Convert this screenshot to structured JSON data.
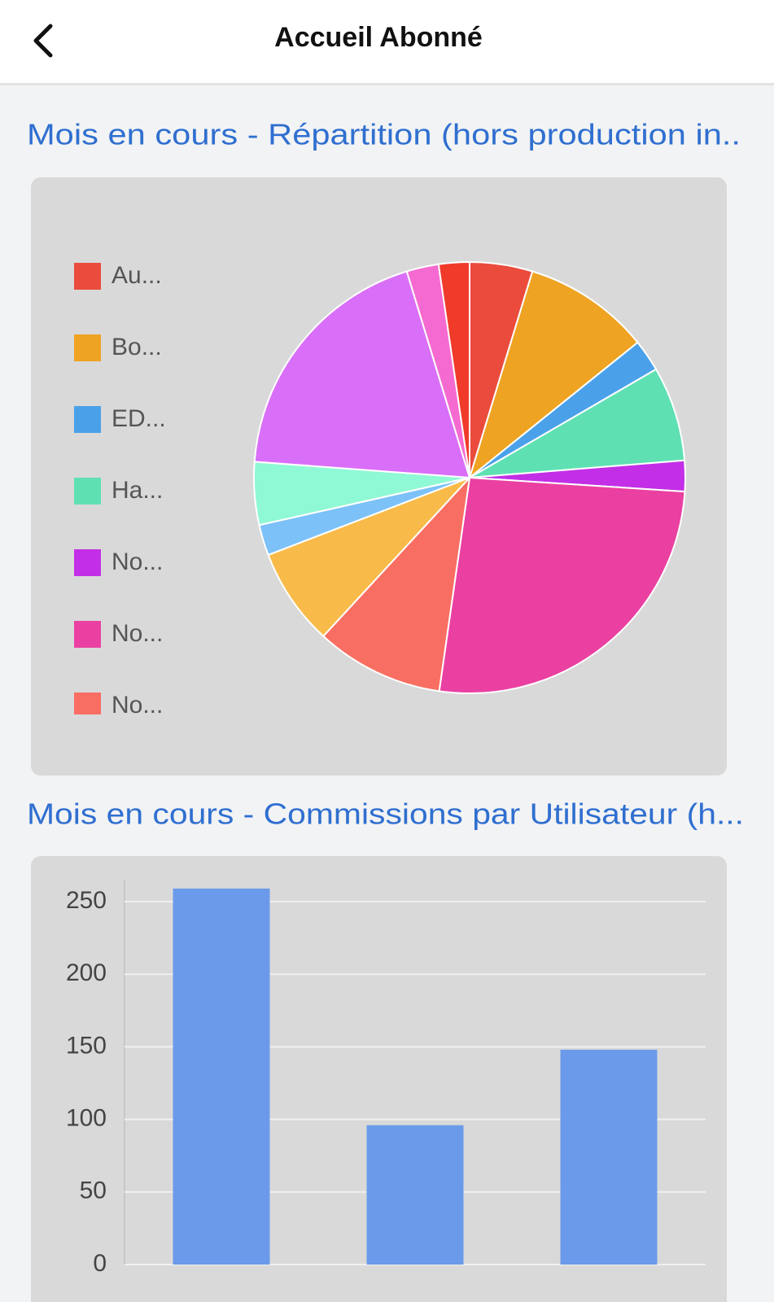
{
  "header": {
    "title": "Accueil Abonné"
  },
  "chart_data": [
    {
      "type": "pie",
      "title": "Mois en cours - Répartition (hors production in..",
      "categories": [
        "Au...",
        "Bo...",
        "ED...",
        "Ha...",
        "No...",
        "No...",
        "No...",
        null,
        null,
        null,
        null,
        null,
        null
      ],
      "values": [
        4.7,
        9.5,
        2.4,
        7.1,
        2.3,
        26.2,
        9.6,
        7.3,
        2.3,
        4.7,
        19.1,
        2.4,
        2.3
      ],
      "colors": [
        "#ea4b3c",
        "#eea322",
        "#4aa1ea",
        "#5fe0b3",
        "#c22fe6",
        "#ea40a1",
        "#f96e62",
        "#f8bb4a",
        "#7cc1f8",
        "#8ff8d5",
        "#d96ff8",
        "#f56ad0",
        "#f03a2a"
      ]
    },
    {
      "type": "bar",
      "title": "Mois en cours - Commissions par Utilisateur (h...",
      "categories": [
        null,
        null,
        null
      ],
      "values": [
        259,
        96,
        148
      ],
      "color": "#6a9ae9",
      "ylim": [
        0,
        265
      ],
      "yticks": [
        0,
        50,
        100,
        150,
        200,
        250
      ],
      "grid": true
    }
  ]
}
